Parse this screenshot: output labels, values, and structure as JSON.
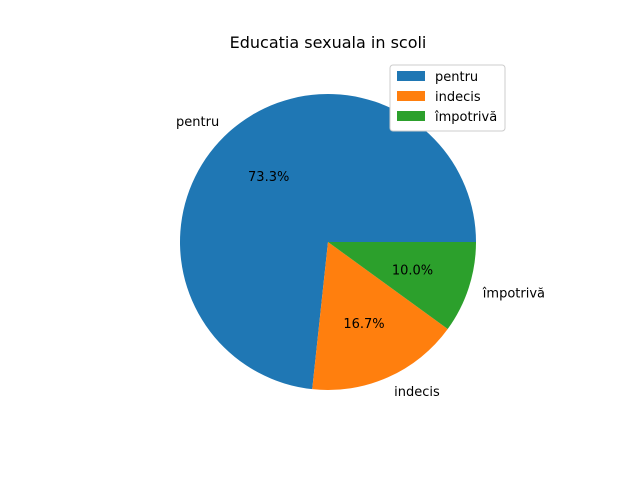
{
  "chart_data": {
    "type": "pie",
    "title": "Educatia sexuala in scoli",
    "labels": [
      "pentru",
      "indecis",
      "împotrivă"
    ],
    "values": [
      73.3,
      16.7,
      10.0
    ],
    "percent_labels": [
      "73.3%",
      "16.7%",
      "10.0%"
    ],
    "colors": [
      "#1f77b4",
      "#ff7f0e",
      "#2ca02c"
    ],
    "start_angle_deg": 0,
    "direction": "counterclockwise",
    "legend": {
      "placement": "upper right",
      "entries": [
        "pentru",
        "indecis",
        "împotrivă"
      ]
    }
  }
}
